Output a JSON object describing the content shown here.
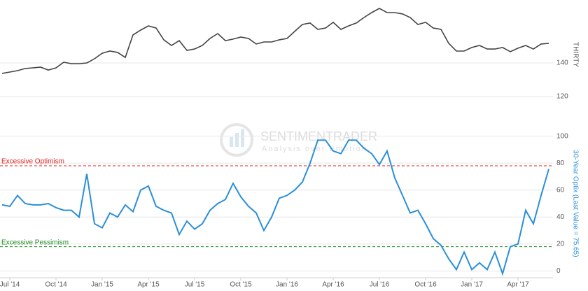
{
  "chart_data": {
    "type": "line",
    "categories": [
      null,
      "Jul '14",
      null,
      null,
      null,
      null,
      null,
      "Oct '14",
      null,
      null,
      null,
      null,
      null,
      "Jan '15",
      null,
      null,
      null,
      null,
      null,
      "Apr '15",
      null,
      null,
      null,
      null,
      null,
      "Jul '15",
      null,
      null,
      null,
      null,
      null,
      "Oct '15",
      null,
      null,
      null,
      null,
      null,
      "Jan '16",
      null,
      null,
      null,
      null,
      null,
      "Apr '16",
      null,
      null,
      null,
      null,
      null,
      "Jul '16",
      null,
      null,
      null,
      null,
      null,
      "Oct '16",
      null,
      null,
      null,
      null,
      null,
      "Jan '17",
      null,
      null,
      null,
      null,
      null,
      "Apr '17",
      null,
      null,
      null,
      null
    ],
    "series": [
      {
        "name": "THIRTY",
        "color": "#444444",
        "ylim": [
          115,
          175
        ],
        "yticks": [
          120,
          140
        ],
        "values": [
          133.8,
          134.6,
          135.4,
          136.7,
          137.1,
          137.5,
          135.8,
          137.1,
          140.4,
          139.6,
          139.6,
          140,
          142.5,
          145.8,
          147.1,
          146.3,
          143.3,
          156.7,
          159.6,
          162.1,
          160.8,
          153.8,
          150.4,
          153.3,
          147.5,
          148.3,
          150.4,
          154.6,
          157.5,
          153.3,
          154.2,
          155.4,
          154.6,
          151.3,
          152.5,
          152.5,
          153.8,
          154.6,
          158.8,
          162.9,
          163.8,
          160,
          160.8,
          164.2,
          160,
          162.1,
          163.8,
          167.1,
          170,
          172.5,
          170,
          170,
          169.2,
          167.1,
          162.9,
          164.2,
          160.8,
          160,
          151.7,
          147.1,
          147.1,
          149.2,
          150.4,
          148.3,
          148.3,
          149.2,
          146.7,
          148.8,
          150.4,
          148.3,
          151.3,
          151.7
        ]
      },
      {
        "name": "30-Year Optix (Last Value = 75.65)",
        "color": "#2b8fd8",
        "ylim": [
          -5,
          105
        ],
        "yticks": [
          0,
          20,
          40,
          60,
          80,
          100
        ],
        "values": [
          49,
          48,
          56,
          50,
          49,
          49,
          50,
          47,
          45,
          45,
          40,
          72,
          35,
          32,
          43,
          40,
          49,
          44,
          60,
          63,
          48,
          45,
          43,
          27,
          37,
          31,
          35,
          45,
          50,
          53,
          65,
          55,
          48,
          43,
          30,
          40,
          54,
          56,
          60,
          66,
          80,
          97,
          97,
          89,
          87,
          97,
          97,
          91,
          87,
          79,
          89,
          69,
          56,
          43,
          45,
          35,
          24,
          19,
          9,
          1,
          14,
          1,
          6,
          1,
          14,
          -2,
          18,
          20,
          45,
          35,
          56,
          75.65
        ]
      }
    ],
    "annotations": [
      {
        "label": "Excessive Optimism",
        "value": 78,
        "color": "#e0201b"
      },
      {
        "label": "Excessive Pessimism",
        "value": 18,
        "color": "#1e8a1e"
      }
    ],
    "watermark": {
      "title": "SENTIMENTRADER",
      "subtitle": "Analysis over Emotion"
    }
  }
}
